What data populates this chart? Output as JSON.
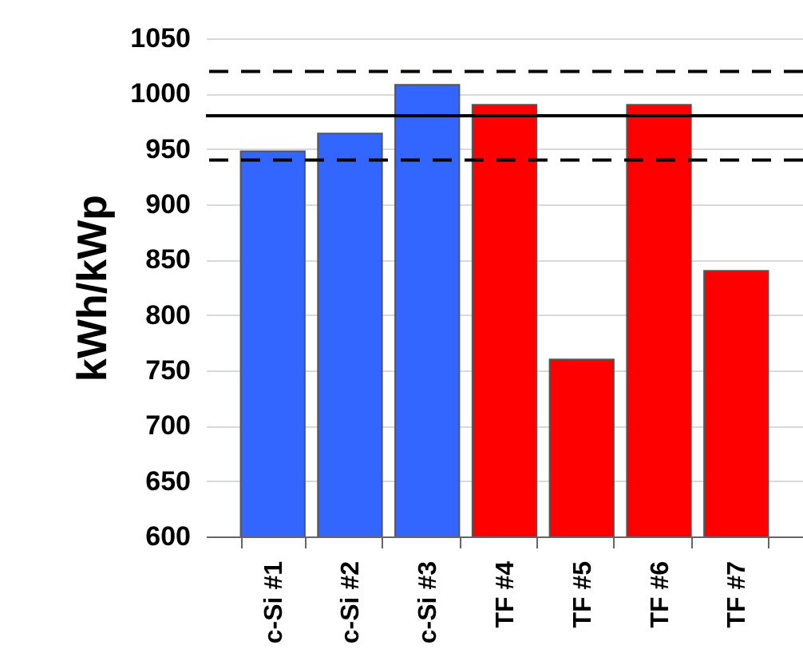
{
  "chart_data": {
    "type": "bar",
    "ylabel": "kWh/kWp",
    "categories": [
      "c-Si #1",
      "c-Si #2",
      "c-Si #3",
      "TF #4",
      "TF #5",
      "TF #6",
      "TF #7"
    ],
    "values": [
      948,
      964,
      1008,
      990,
      760,
      990,
      840
    ],
    "colors": [
      "#3366ff",
      "#3366ff",
      "#3366ff",
      "#ff0000",
      "#ff0000",
      "#ff0000",
      "#ff0000"
    ],
    "ylim": [
      600,
      1050
    ],
    "yticks": [
      600,
      650,
      700,
      750,
      800,
      850,
      900,
      950,
      1000,
      1050
    ],
    "grid": "y",
    "ref_lines": [
      {
        "axis": "y",
        "value": 1020,
        "line_style": "dashed"
      },
      {
        "axis": "y",
        "value": 980,
        "line_style": "solid"
      },
      {
        "axis": "y",
        "value": 940,
        "line_style": "dashed"
      }
    ]
  }
}
